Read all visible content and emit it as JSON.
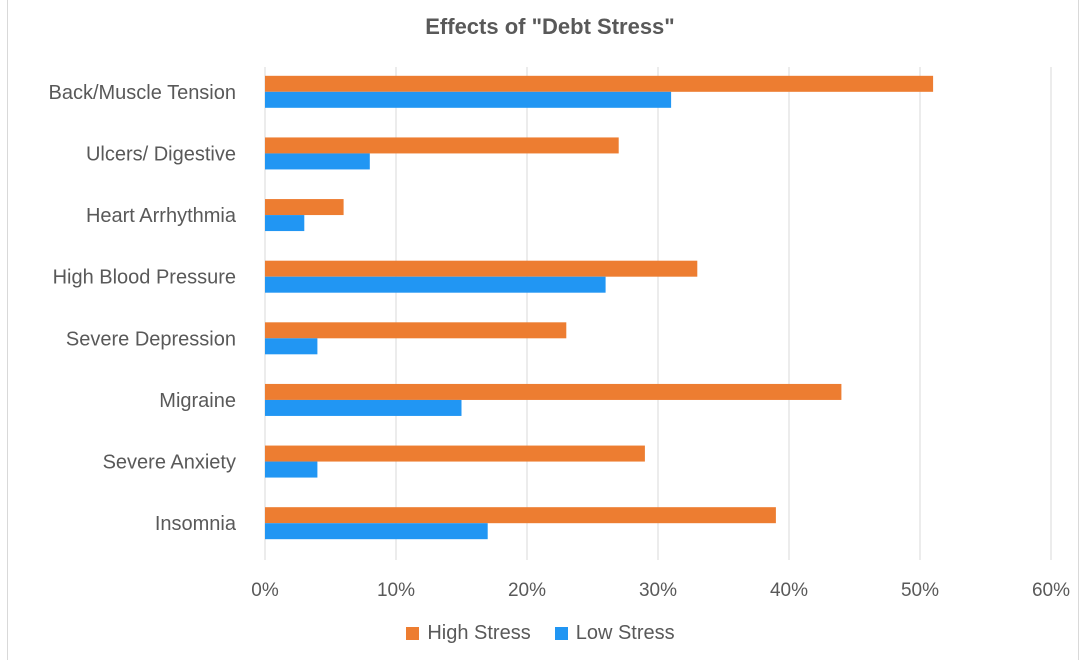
{
  "chart_data": {
    "type": "bar",
    "orientation": "horizontal",
    "title": "Effects of \"Debt Stress\"",
    "categories": [
      "Back/Muscle Tension",
      "Ulcers/ Digestive",
      "Heart Arrhythmia",
      "High Blood Pressure",
      "Severe Depression",
      "Migraine",
      "Severe Anxiety",
      "Insomnia"
    ],
    "series": [
      {
        "name": "High Stress",
        "color": "#ED7D31",
        "values": [
          51,
          27,
          6,
          33,
          23,
          44,
          29,
          39
        ]
      },
      {
        "name": "Low Stress",
        "color": "#2196F3",
        "values": [
          31,
          8,
          3,
          26,
          4,
          15,
          4,
          17
        ]
      }
    ],
    "xlim": [
      0,
      60
    ],
    "x_ticks": [
      "0%",
      "10%",
      "20%",
      "30%",
      "40%",
      "50%",
      "60%"
    ],
    "grid": "vertical",
    "legend_position": "bottom"
  }
}
